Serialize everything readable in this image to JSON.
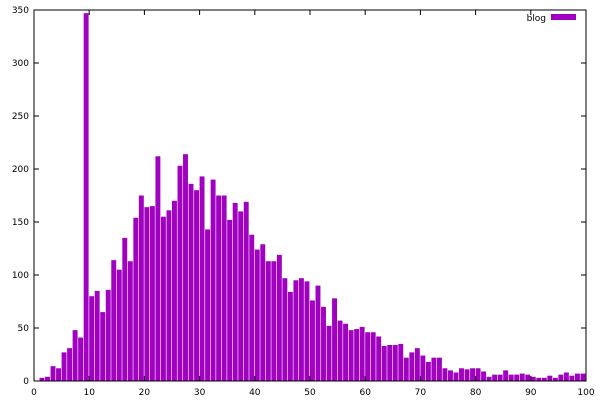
{
  "chart_data": {
    "type": "bar",
    "legend": {
      "placement": "top-right"
    },
    "series": [
      {
        "name": "blog",
        "color": "#a000c0",
        "x": [
          1,
          2,
          3,
          4,
          5,
          6,
          7,
          8,
          9,
          10,
          11,
          12,
          13,
          14,
          15,
          16,
          17,
          18,
          19,
          20,
          21,
          22,
          23,
          24,
          25,
          26,
          27,
          28,
          29,
          30,
          31,
          32,
          33,
          34,
          35,
          36,
          37,
          38,
          39,
          40,
          41,
          42,
          43,
          44,
          45,
          46,
          47,
          48,
          49,
          50,
          51,
          52,
          53,
          54,
          55,
          56,
          57,
          58,
          59,
          60,
          61,
          62,
          63,
          64,
          65,
          66,
          67,
          68,
          69,
          70,
          71,
          72,
          73,
          74,
          75,
          76,
          77,
          78,
          79,
          80,
          81,
          82,
          83,
          84,
          85,
          86,
          87,
          88,
          89,
          90,
          91,
          92,
          93,
          94,
          95,
          96,
          97,
          98,
          99,
          100
        ],
        "values": [
          0,
          3,
          4,
          14,
          12,
          27,
          31,
          48,
          41,
          347,
          80,
          85,
          65,
          86,
          114,
          105,
          135,
          113,
          154,
          175,
          164,
          165,
          212,
          155,
          161,
          170,
          203,
          214,
          186,
          180,
          193,
          143,
          190,
          175,
          175,
          152,
          168,
          160,
          169,
          138,
          124,
          129,
          113,
          113,
          119,
          97,
          84,
          95,
          97,
          94,
          76,
          90,
          70,
          52,
          78,
          57,
          54,
          48,
          49,
          51,
          46,
          46,
          42,
          33,
          34,
          34,
          35,
          22,
          27,
          31,
          24,
          18,
          22,
          22,
          12,
          10,
          8,
          12,
          11,
          12,
          12,
          9,
          4,
          6,
          6,
          10,
          6,
          6,
          7,
          6,
          4,
          3,
          3,
          5,
          3,
          6,
          8,
          5,
          7,
          7
        ],
        "bins": 0
      }
    ],
    "xlim": [
      0,
      100
    ],
    "ylim": [
      0,
      350
    ],
    "xticks": [
      "0",
      "10",
      "20",
      "30",
      "40",
      "50",
      "60",
      "70",
      "80",
      "90",
      "100"
    ],
    "yticks": [
      "0",
      "50",
      "100",
      "150",
      "200",
      "250",
      "300",
      "350"
    ],
    "grid": false,
    "title": "",
    "xlabel": "",
    "ylabel": ""
  }
}
